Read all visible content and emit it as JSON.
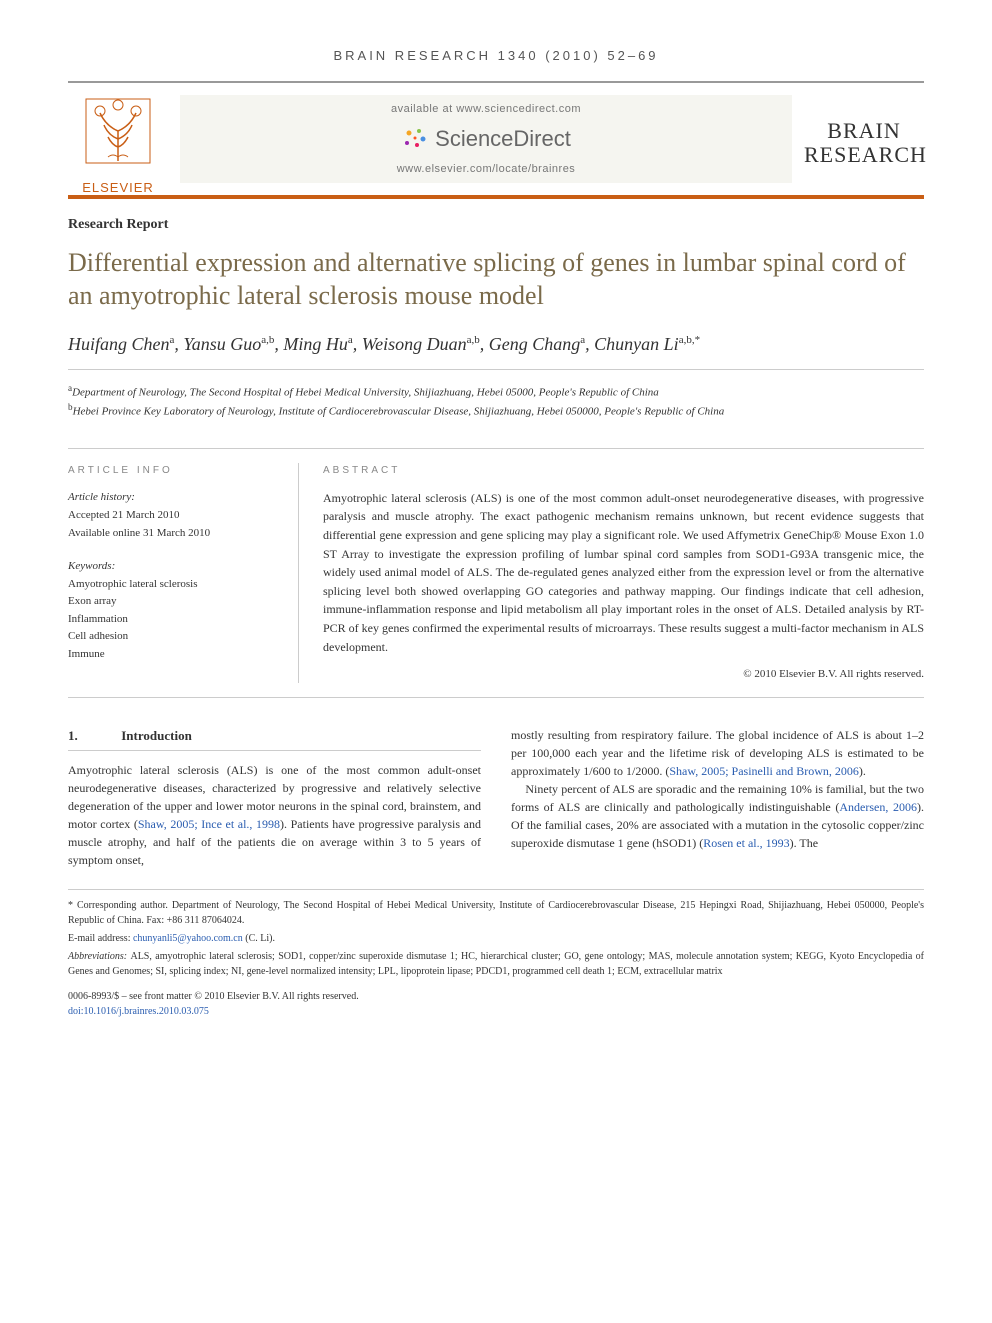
{
  "journal_header": "BRAIN RESEARCH 1340 (2010) 52–69",
  "branding": {
    "elsevier": "ELSEVIER",
    "available_at": "available at www.sciencedirect.com",
    "sciencedirect": "ScienceDirect",
    "journal_url": "www.elsevier.com/locate/brainres",
    "journal_name_1": "BRAIN",
    "journal_name_2": "RESEARCH"
  },
  "section_label": "Research Report",
  "title": "Differential expression and alternative splicing of genes in lumbar spinal cord of an amyotrophic lateral sclerosis mouse model",
  "authors_html": "Huifang Chen<sup>a</sup>, Yansu Guo<sup>a,b</sup>, Ming Hu<sup>a</sup>, Weisong Duan<sup>a,b</sup>, Geng Chang<sup>a</sup>, Chunyan Li<sup>a,b,*</sup>",
  "affiliations": {
    "a": "Department of Neurology, The Second Hospital of Hebei Medical University, Shijiazhuang, Hebei 05000, People's Republic of China",
    "b": "Hebei Province Key Laboratory of Neurology, Institute of Cardiocerebrovascular Disease, Shijiazhuang, Hebei 050000, People's Republic of China"
  },
  "article_info": {
    "heading": "ARTICLE INFO",
    "history_label": "Article history:",
    "accepted": "Accepted 21 March 2010",
    "available_online": "Available online 31 March 2010",
    "keywords_label": "Keywords:",
    "keywords": [
      "Amyotrophic lateral sclerosis",
      "Exon array",
      "Inflammation",
      "Cell adhesion",
      "Immune"
    ]
  },
  "abstract": {
    "heading": "ABSTRACT",
    "text": "Amyotrophic lateral sclerosis (ALS) is one of the most common adult-onset neurodegenerative diseases, with progressive paralysis and muscle atrophy. The exact pathogenic mechanism remains unknown, but recent evidence suggests that differential gene expression and gene splicing may play a significant role. We used Affymetrix GeneChip® Mouse Exon 1.0 ST Array to investigate the expression profiling of lumbar spinal cord samples from SOD1-G93A transgenic mice, the widely used animal model of ALS. The de-regulated genes analyzed either from the expression level or from the alternative splicing level both showed overlapping GO categories and pathway mapping. Our findings indicate that cell adhesion, immune-inflammation response and lipid metabolism all play important roles in the onset of ALS. Detailed analysis by RT-PCR of key genes confirmed the experimental results of microarrays. These results suggest a multi-factor mechanism in ALS development.",
    "copyright": "© 2010 Elsevier B.V. All rights reserved."
  },
  "introduction": {
    "num": "1.",
    "label": "Introduction",
    "col1": "Amyotrophic lateral sclerosis (ALS) is one of the most common adult-onset neurodegenerative diseases, characterized by progressive and relatively selective degeneration of the upper and lower motor neurons in the spinal cord, brainstem, and motor cortex (Shaw, 2005; Ince et al., 1998). Patients have progressive paralysis and muscle atrophy, and half of the patients die on average within 3 to 5 years of symptom onset,",
    "col2_p1": "mostly resulting from respiratory failure. The global incidence of ALS is about 1–2 per 100,000 each year and the lifetime risk of developing ALS is estimated to be approximately 1/600 to 1/2000. (Shaw, 2005; Pasinelli and Brown, 2006).",
    "col2_p2": "Ninety percent of ALS are sporadic and the remaining 10% is familial, but the two forms of ALS are clinically and pathologically indistinguishable (Andersen, 2006). Of the familial cases, 20% are associated with a mutation in the cytosolic copper/zinc superoxide dismutase 1 gene (hSOD1) (Rosen et al., 1993). The"
  },
  "footnotes": {
    "corresponding": "* Corresponding author. Department of Neurology, The Second Hospital of Hebei Medical University, Institute of Cardiocerebrovascular Disease, 215 Hepingxi Road, Shijiazhuang, Hebei 050000, People's Republic of China. Fax: +86 311 87064024.",
    "email_label": "E-mail address: ",
    "email": "chunyanli5@yahoo.com.cn",
    "email_suffix": " (C. Li).",
    "abbrev_label": "Abbreviations: ",
    "abbreviations": "ALS, amyotrophic lateral sclerosis; SOD1, copper/zinc superoxide dismutase 1; HC, hierarchical cluster; GO, gene ontology; MAS, molecule annotation system; KEGG, Kyoto Encyclopedia of Genes and Genomes; SI, splicing index; NI, gene-level normalized intensity; LPL, lipoprotein lipase; PDCD1, programmed cell death 1; ECM, extracellular matrix"
  },
  "footer": {
    "issn": "0006-8993/$ – see front matter © 2010 Elsevier B.V. All rights reserved.",
    "doi": "doi:10.1016/j.brainres.2010.03.075"
  },
  "colors": {
    "accent": "#c95e15",
    "title": "#7a6a4a",
    "link": "#2a5db0"
  }
}
